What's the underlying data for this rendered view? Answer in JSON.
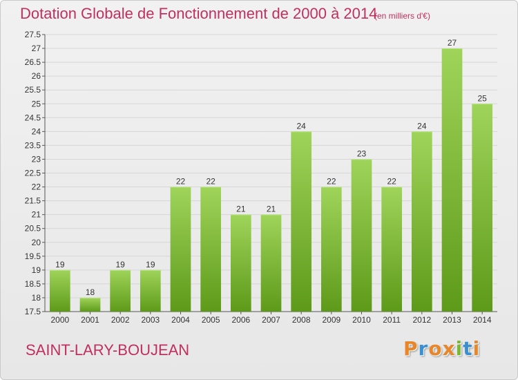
{
  "chart_data": {
    "type": "bar",
    "title": "Dotation Globale de Fonctionnement de 2000 à 2014",
    "subtitle": "(en milliers d'€)",
    "categories": [
      "2000",
      "2001",
      "2002",
      "2003",
      "2004",
      "2005",
      "2006",
      "2007",
      "2008",
      "2009",
      "2010",
      "2011",
      "2012",
      "2013",
      "2014"
    ],
    "values": [
      19,
      18,
      19,
      19,
      22,
      22,
      21,
      21,
      24,
      22,
      23,
      22,
      24,
      27,
      25
    ],
    "ylim": [
      17.5,
      27.5
    ],
    "yticks": [
      "17.5",
      "18",
      "18.5",
      "19",
      "19.5",
      "20",
      "20.5",
      "21",
      "21.5",
      "22",
      "22.5",
      "23",
      "23.5",
      "24",
      "24.5",
      "25",
      "25.5",
      "26",
      "26.5",
      "27",
      "27.5"
    ],
    "grid": true,
    "bar_color": "#7ab832"
  },
  "footer": {
    "commune": "SAINT-LARY-BOUJEAN",
    "logo": [
      "P",
      "r",
      "o",
      "x",
      "i",
      "t",
      "i"
    ],
    "logo_colors": [
      "#e8862a",
      "#3a8fd0",
      "#e8862a",
      "#e8862a",
      "#7ab832",
      "#3a8fd0",
      "#e8862a"
    ]
  }
}
